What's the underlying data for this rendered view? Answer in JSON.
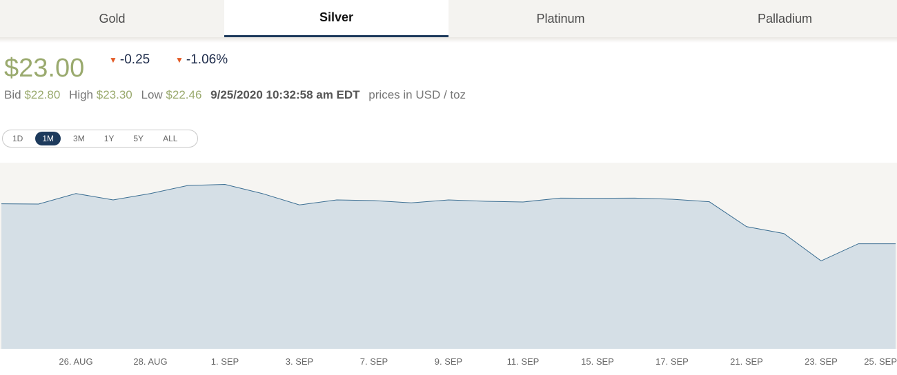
{
  "tabs": [
    {
      "label": "Gold",
      "active": false
    },
    {
      "label": "Silver",
      "active": true
    },
    {
      "label": "Platinum",
      "active": false
    },
    {
      "label": "Palladium",
      "active": false
    }
  ],
  "quote": {
    "price": "$23.00",
    "change_abs": "-0.25",
    "change_pct": "-1.06%",
    "bid_label": "Bid",
    "bid": "$22.80",
    "high_label": "High",
    "high": "$23.30",
    "low_label": "Low",
    "low": "$22.46",
    "timestamp": "9/25/2020 10:32:58 am EDT",
    "units": "prices in USD / toz"
  },
  "ranges": [
    {
      "label": "1D",
      "active": false
    },
    {
      "label": "1M",
      "active": true
    },
    {
      "label": "3M",
      "active": false
    },
    {
      "label": "1Y",
      "active": false
    },
    {
      "label": "5Y",
      "active": false
    },
    {
      "label": "ALL",
      "active": false
    }
  ],
  "colors": {
    "accent": "#1d3a5c",
    "price_green": "#9aaa6e",
    "down_arrow": "#e35a25",
    "area_fill": "#d5dfe6",
    "line": "#3b6e92",
    "plot_bg": "#f6f5f2"
  },
  "chart_data": {
    "type": "area",
    "x": [
      "24. AUG",
      "25. AUG",
      "26. AUG",
      "27. AUG",
      "28. AUG",
      "31. AUG",
      "1. SEP",
      "2. SEP",
      "3. SEP",
      "4. SEP",
      "7. SEP",
      "8. SEP",
      "9. SEP",
      "10. SEP",
      "11. SEP",
      "14. SEP",
      "15. SEP",
      "16. SEP",
      "17. SEP",
      "18. SEP",
      "21. SEP",
      "22. SEP",
      "23. SEP",
      "24. SEP",
      "25. SEP"
    ],
    "values": [
      26.7,
      26.68,
      27.6,
      27.04,
      27.6,
      28.3,
      28.4,
      27.6,
      26.6,
      27.04,
      26.98,
      26.78,
      27.04,
      26.92,
      26.86,
      27.2,
      27.18,
      27.2,
      27.1,
      26.88,
      24.7,
      24.1,
      21.7,
      23.2,
      23.2
    ],
    "tick_labels": [
      "26. AUG",
      "28. AUG",
      "1. SEP",
      "3. SEP",
      "7. SEP",
      "9. SEP",
      "11. SEP",
      "15. SEP",
      "17. SEP",
      "21. SEP",
      "23. SEP",
      "25. SEP"
    ],
    "ylim": [
      14.0,
      30.3
    ],
    "grid": false,
    "legend": "none"
  }
}
